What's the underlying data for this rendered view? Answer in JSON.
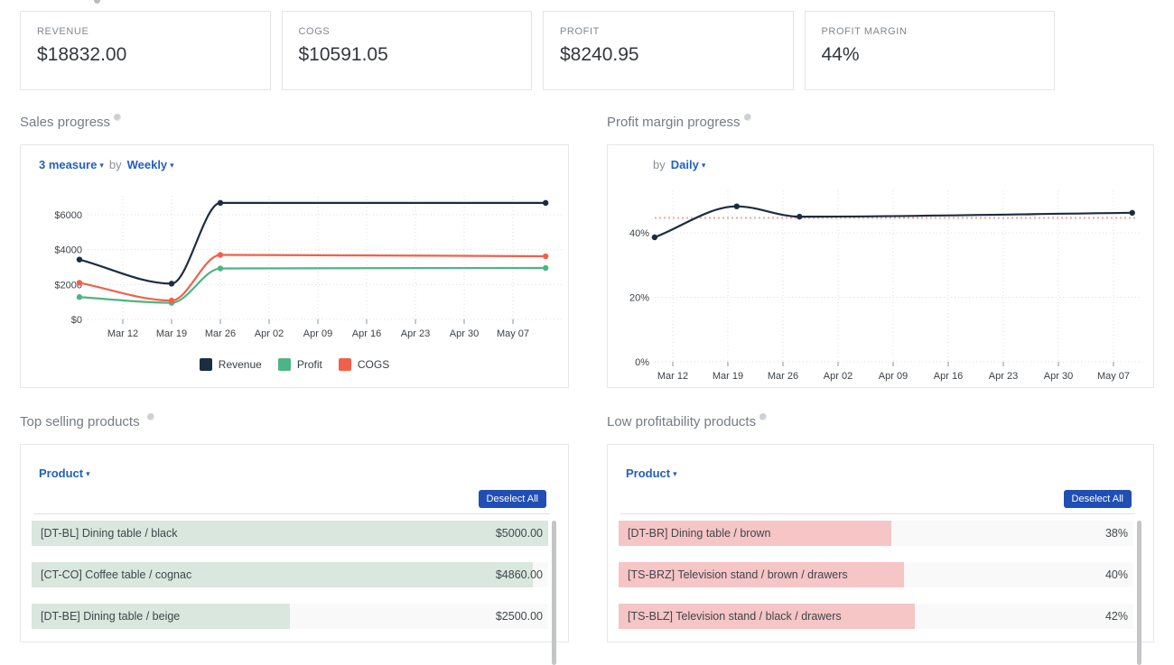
{
  "kpis": [
    {
      "label": "REVENUE",
      "value": "$18832.00"
    },
    {
      "label": "COGS",
      "value": "$10591.05"
    },
    {
      "label": "PROFIT",
      "value": "$8240.95"
    },
    {
      "label": "PROFIT MARGIN",
      "value": "44%"
    }
  ],
  "sales_section": {
    "title": "Sales progress",
    "measure_dropdown": "3 measure",
    "by_label": "by",
    "interval_dropdown": "Weekly"
  },
  "margin_section": {
    "title": "Profit margin progress",
    "by_label": "by",
    "interval_dropdown": "Daily"
  },
  "top_products": {
    "title": "Top selling products",
    "dimension_dropdown": "Product",
    "deselect_all_label": "Deselect All",
    "bar_color": "#d9e7de",
    "rows": [
      {
        "label": "[DT-BL] Dining table / black",
        "value": "$5000.00",
        "bar_pct": 100
      },
      {
        "label": "[CT-CO] Coffee table / cognac",
        "value": "$4860.00",
        "bar_pct": 97
      },
      {
        "label": "[DT-BE] Dining table / beige",
        "value": "$2500.00",
        "bar_pct": 50
      }
    ]
  },
  "low_products": {
    "title": "Low profitability products",
    "dimension_dropdown": "Product",
    "deselect_all_label": "Deselect All",
    "bar_color": "#f6c5c6",
    "rows": [
      {
        "label": "[DT-BR] Dining table / brown",
        "value": "38%",
        "bar_pct": 53
      },
      {
        "label": "[TS-BRZ] Television stand / brown / drawers",
        "value": "40%",
        "bar_pct": 55.5
      },
      {
        "label": "[TS-BLZ] Television stand / black / drawers",
        "value": "42%",
        "bar_pct": 57.5
      }
    ]
  },
  "chart_data": [
    {
      "id": "sales",
      "type": "line",
      "title": "Sales progress",
      "x_tick_labels": [
        "Mar 12",
        "Mar 19",
        "Mar 26",
        "Apr 02",
        "Apr 09",
        "Apr 16",
        "Apr 23",
        "Apr 30",
        "May 07"
      ],
      "y_ticks": [
        0,
        2000,
        4000,
        6000
      ],
      "y_tick_labels": [
        "$0",
        "$2000",
        "$4000",
        "$6000"
      ],
      "ylim": [
        0,
        7000
      ],
      "grid": true,
      "legend_position": "bottom",
      "series": [
        {
          "name": "Revenue",
          "color": "#1b2d40",
          "points": [
            [
              -0.89,
              3430
            ],
            [
              1,
              2050
            ],
            [
              2,
              6680
            ],
            [
              8.67,
              6680
            ]
          ]
        },
        {
          "name": "Profit",
          "color": "#4db583",
          "points": [
            [
              -0.89,
              1280
            ],
            [
              1,
              950
            ],
            [
              2,
              2920
            ],
            [
              8.67,
              2950
            ]
          ]
        },
        {
          "name": "COGS",
          "color": "#f1604a",
          "points": [
            [
              -0.89,
              2100
            ],
            [
              1,
              1080
            ],
            [
              2,
              3700
            ],
            [
              8.67,
              3620
            ]
          ]
        }
      ]
    },
    {
      "id": "margin",
      "type": "line",
      "title": "Profit margin progress",
      "x_tick_labels": [
        "Mar 12",
        "Mar 19",
        "Mar 26",
        "Apr 02",
        "Apr 09",
        "Apr 16",
        "Apr 23",
        "Apr 30",
        "May 07"
      ],
      "y_ticks": [
        0,
        20,
        40
      ],
      "y_tick_labels": [
        "0%",
        "20%",
        "40%"
      ],
      "ylim": [
        0,
        53
      ],
      "grid": true,
      "reference_line": {
        "value": 44.6,
        "color": "#f2a5a2",
        "style": "dotted"
      },
      "series": [
        {
          "name": "Profit margin",
          "color": "#1b2d40",
          "points": [
            [
              -0.33,
              38.6
            ],
            [
              1.16,
              48.2
            ],
            [
              2.3,
              45
            ],
            [
              8.34,
              46.2
            ]
          ]
        }
      ]
    }
  ]
}
